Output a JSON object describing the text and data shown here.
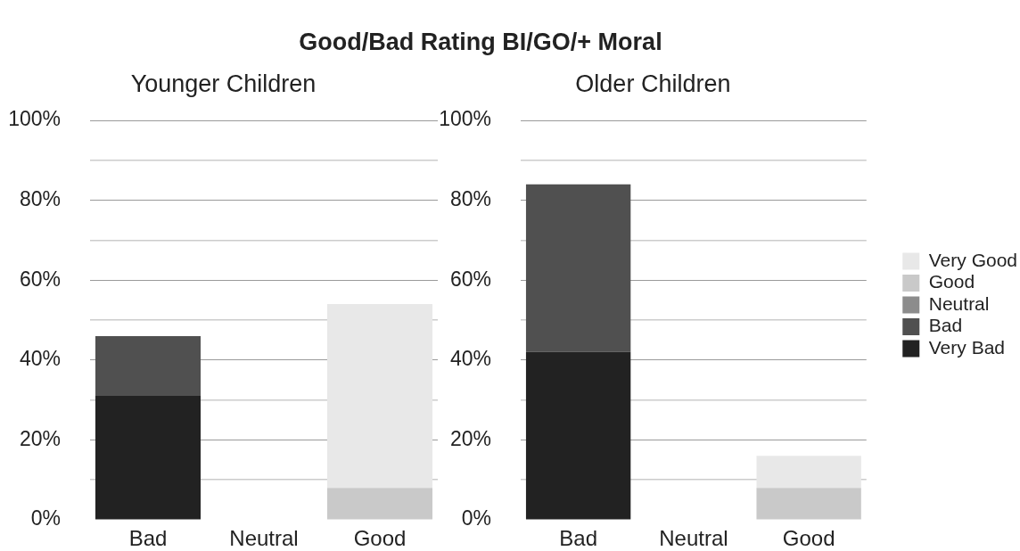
{
  "chart_data": [
    {
      "type": "bar",
      "title": "Good/Bad Rating BI/GO/+ Moral",
      "subtitle": "Younger Children",
      "stacked": true,
      "categories": [
        "Bad",
        "Neutral",
        "Good"
      ],
      "series": [
        {
          "color": "#222222",
          "values": [
            31,
            0,
            0
          ]
        },
        {
          "color": "#505050",
          "values": [
            15,
            0,
            0
          ]
        },
        {
          "color": "#8c8c8c",
          "values": [
            0,
            0,
            0
          ]
        },
        {
          "color": "#c9c9c9",
          "values": [
            0,
            0,
            8
          ]
        },
        {
          "color": "#e8e8e8",
          "values": [
            0,
            0,
            46
          ]
        }
      ],
      "ylim": [
        0,
        100
      ],
      "yticks": [
        {
          "value": 0,
          "label": "0%"
        },
        {
          "value": 10,
          "label": null
        },
        {
          "value": 20,
          "label": "20%"
        },
        {
          "value": 30,
          "label": null
        },
        {
          "value": 40,
          "label": "40%"
        },
        {
          "value": 50,
          "label": null
        },
        {
          "value": 60,
          "label": "60%"
        },
        {
          "value": 70,
          "label": null
        },
        {
          "value": 80,
          "label": "80%"
        },
        {
          "value": 90,
          "label": null
        },
        {
          "value": 100,
          "label": "100%"
        }
      ],
      "grid": "y"
    },
    {
      "type": "bar",
      "subtitle": "Older Children",
      "stacked": true,
      "categories": [
        "Bad",
        "Neutral",
        "Good"
      ],
      "series": [
        {
          "name": "Very Bad",
          "color": "#222222",
          "values": [
            42,
            0,
            0
          ]
        },
        {
          "name": "Bad",
          "color": "#505050",
          "values": [
            42,
            0,
            0
          ]
        },
        {
          "name": "Neutral",
          "color": "#8c8c8c",
          "values": [
            0,
            0,
            0
          ]
        },
        {
          "name": "Good",
          "color": "#c9c9c9",
          "values": [
            0,
            0,
            8
          ]
        },
        {
          "name": "Very Good",
          "color": "#e8e8e8",
          "values": [
            0,
            0,
            8
          ]
        }
      ],
      "ylim": [
        0,
        100
      ],
      "yticks": [
        {
          "value": 0,
          "label": "0%"
        },
        {
          "value": 10,
          "label": null
        },
        {
          "value": 20,
          "label": "20%"
        },
        {
          "value": 30,
          "label": null
        },
        {
          "value": 40,
          "label": "40%"
        },
        {
          "value": 50,
          "label": null
        },
        {
          "value": 60,
          "label": "60%"
        },
        {
          "value": 70,
          "label": null
        },
        {
          "value": 80,
          "label": "80%"
        },
        {
          "value": 90,
          "label": null
        },
        {
          "value": 100,
          "label": "100%"
        }
      ],
      "grid": "y",
      "legend": "right"
    }
  ]
}
